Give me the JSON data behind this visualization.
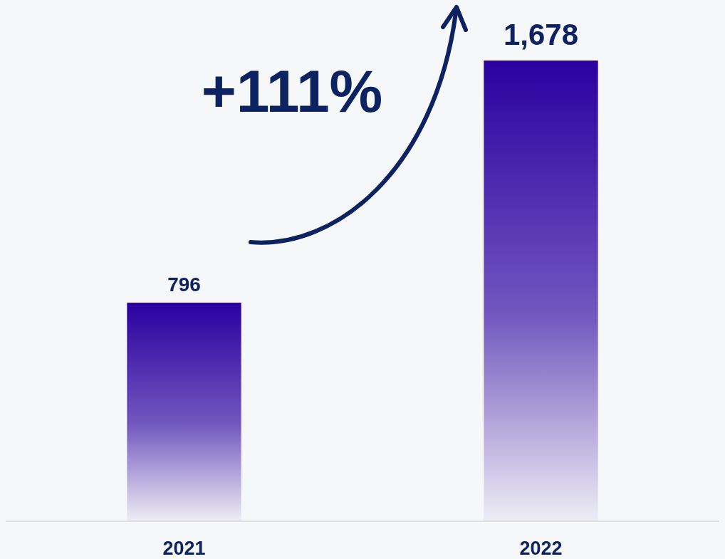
{
  "chart_data": {
    "type": "bar",
    "categories": [
      "2021",
      "2022"
    ],
    "values": [
      796,
      1678
    ],
    "color": "#2a00a0",
    "value_labels": [
      "796",
      "1,678"
    ],
    "annotations": [
      "+111%"
    ]
  }
}
